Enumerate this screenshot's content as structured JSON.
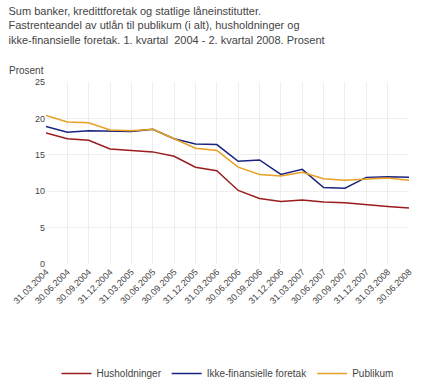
{
  "chart_data": {
    "type": "line",
    "title": "Sum banker, kredittforetak og statlige låneinstitutter.\nFastrenteandel av utlån til publikum (i alt), husholdninger og\nikke-finansielle foretak. 1. kvartal  2004 - 2. kvartal 2008. Prosent",
    "ylabel": "Prosent",
    "categories": [
      "31.03.2004",
      "30.06.2004",
      "30.09.2004",
      "31.12.2004",
      "31.03.2005",
      "30.06.2005",
      "30.09.2005",
      "31.12.2005",
      "31.03.2006",
      "30.06.2006",
      "30.09.2006",
      "31.12.2006",
      "31.03.2007",
      "30.06.2007",
      "30.09.2007",
      "31.12.2007",
      "31.03.2008",
      "30.06.2008"
    ],
    "series": [
      {
        "name": "Husholdninger",
        "color": "#9B1C1C",
        "values": [
          18.0,
          17.2,
          17.0,
          15.8,
          15.6,
          15.4,
          14.8,
          13.3,
          12.8,
          10.1,
          9.0,
          8.6,
          8.8,
          8.5,
          8.4,
          8.1,
          7.9,
          7.7
        ]
      },
      {
        "name": "Ikke-finansielle foretak",
        "color": "#1A237E",
        "values": [
          18.9,
          18.1,
          18.3,
          18.3,
          18.2,
          18.5,
          17.2,
          16.5,
          16.4,
          14.1,
          14.3,
          12.3,
          13.0,
          10.5,
          10.4,
          11.9,
          12.0,
          11.9
        ]
      },
      {
        "name": "Publikum",
        "color": "#E8A020",
        "values": [
          20.4,
          19.5,
          19.4,
          18.4,
          18.3,
          18.5,
          17.2,
          15.9,
          15.6,
          13.3,
          12.3,
          12.1,
          12.6,
          11.7,
          11.5,
          11.7,
          11.8,
          11.5
        ]
      }
    ],
    "ylim": [
      0,
      25
    ],
    "yticks": [
      0,
      5,
      10,
      15,
      20,
      25
    ],
    "grid": true,
    "legend": "bottom"
  }
}
